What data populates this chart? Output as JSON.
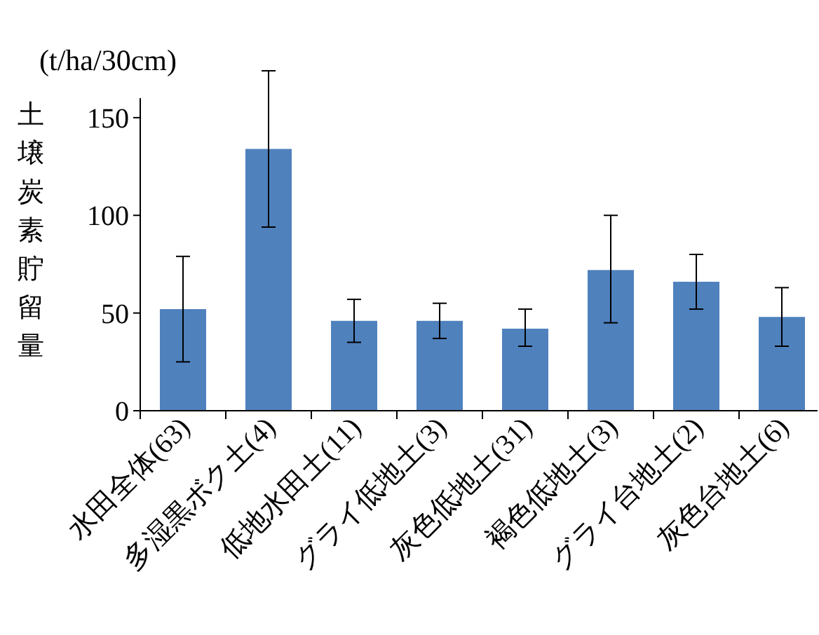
{
  "chart_data": {
    "type": "bar",
    "ylabel": "土壌炭素貯留量",
    "annotations": [
      "(t/ha/30cm)"
    ],
    "categories": [
      "水田全体(63)",
      "多湿黒ボク土(4)",
      "低地水田土(11)",
      "グライ低地土(3)",
      "灰色低地土(31)",
      "褐色低地土(3)",
      "グライ台地土(2)",
      "灰色台地土(6)"
    ],
    "values": [
      52,
      134,
      46,
      46,
      42,
      72,
      66,
      48
    ],
    "errors": [
      [
        25,
        79
      ],
      [
        94,
        174
      ],
      [
        35,
        57
      ],
      [
        37,
        55
      ],
      [
        33,
        52
      ],
      [
        45,
        100
      ],
      [
        52,
        80
      ],
      [
        33,
        63
      ]
    ],
    "color": "#4f81bd",
    "ylim": [
      0,
      160
    ],
    "yticks": [
      0,
      50,
      100,
      150
    ]
  }
}
